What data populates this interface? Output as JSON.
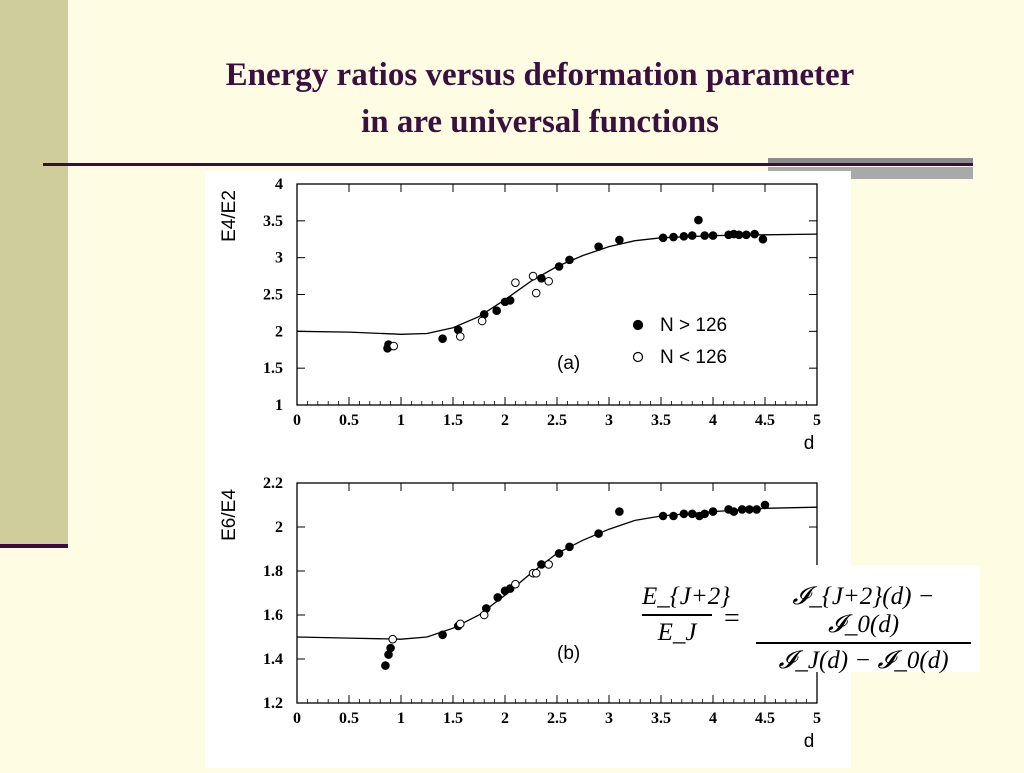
{
  "slide": {
    "title_line1": "Energy ratios versus deformation parameter",
    "title_line2": "in are universal functions"
  },
  "formula": {
    "lhs_num": "E_{J+2}",
    "lhs_den": "E_J",
    "rhs_num": "𝓘_{J+2}(d) − 𝓘_0(d)",
    "rhs_den": "𝓘_J(d) − 𝓘_0(d)",
    "equals": "="
  },
  "chart_data": [
    {
      "type": "scatter",
      "panel_label": "(a)",
      "ylabel": "E4/E2",
      "xlabel": "d",
      "xlim": [
        0,
        5
      ],
      "ylim": [
        1,
        4
      ],
      "xticks": [
        "0",
        "0.5",
        "1",
        "1.5",
        "2",
        "2.5",
        "3",
        "3.5",
        "4",
        "4.5",
        "5"
      ],
      "yticks": [
        "1",
        "1.5",
        "2",
        "2.5",
        "3",
        "3.5",
        "4"
      ],
      "legend": [
        "N > 126",
        "N < 126"
      ],
      "legend_position": "right",
      "series": [
        {
          "name": "N > 126",
          "marker": "filled",
          "points": [
            [
              0.87,
              1.77
            ],
            [
              0.88,
              1.82
            ],
            [
              0.9,
              1.8
            ],
            [
              1.4,
              1.9
            ],
            [
              1.55,
              2.02
            ],
            [
              1.8,
              2.23
            ],
            [
              1.92,
              2.28
            ],
            [
              2.0,
              2.4
            ],
            [
              2.05,
              2.42
            ],
            [
              2.35,
              2.72
            ],
            [
              2.52,
              2.88
            ],
            [
              2.62,
              2.97
            ],
            [
              2.9,
              3.15
            ],
            [
              3.1,
              3.24
            ],
            [
              3.52,
              3.27
            ],
            [
              3.62,
              3.28
            ],
            [
              3.72,
              3.29
            ],
            [
              3.8,
              3.3
            ],
            [
              3.86,
              3.51
            ],
            [
              3.92,
              3.3
            ],
            [
              4.0,
              3.3
            ],
            [
              4.15,
              3.31
            ],
            [
              4.2,
              3.32
            ],
            [
              4.25,
              3.31
            ],
            [
              4.32,
              3.31
            ],
            [
              4.4,
              3.32
            ],
            [
              4.48,
              3.25
            ]
          ]
        },
        {
          "name": "N < 126",
          "marker": "open",
          "points": [
            [
              0.93,
              1.8
            ],
            [
              1.57,
              1.93
            ],
            [
              1.78,
              2.14
            ],
            [
              2.1,
              2.66
            ],
            [
              2.27,
              2.75
            ],
            [
              2.3,
              2.52
            ],
            [
              2.42,
              2.68
            ]
          ]
        },
        {
          "name": "",
          "marker": "line",
          "points": [
            [
              0,
              2.0
            ],
            [
              0.5,
              1.99
            ],
            [
              1,
              1.96
            ],
            [
              1.25,
              1.97
            ],
            [
              1.5,
              2.05
            ],
            [
              1.75,
              2.2
            ],
            [
              2,
              2.43
            ],
            [
              2.25,
              2.68
            ],
            [
              2.5,
              2.88
            ],
            [
              2.75,
              3.03
            ],
            [
              3,
              3.15
            ],
            [
              3.25,
              3.23
            ],
            [
              3.5,
              3.27
            ],
            [
              4,
              3.3
            ],
            [
              4.5,
              3.31
            ],
            [
              5,
              3.32
            ]
          ]
        }
      ]
    },
    {
      "type": "scatter",
      "panel_label": "(b)",
      "ylabel": "E6/E4",
      "xlabel": "d",
      "xlim": [
        0,
        5
      ],
      "ylim": [
        1.2,
        2.2
      ],
      "xticks": [
        "0",
        "0.5",
        "1",
        "1.5",
        "2",
        "2.5",
        "3",
        "3.5",
        "4",
        "4.5",
        "5"
      ],
      "yticks": [
        "1.2",
        "1.4",
        "1.6",
        "1.8",
        "2",
        "2.2"
      ],
      "series": [
        {
          "name": "N > 126",
          "marker": "filled",
          "points": [
            [
              0.85,
              1.37
            ],
            [
              0.88,
              1.42
            ],
            [
              0.9,
              1.45
            ],
            [
              1.4,
              1.51
            ],
            [
              1.55,
              1.55
            ],
            [
              1.82,
              1.63
            ],
            [
              1.93,
              1.68
            ],
            [
              2.0,
              1.71
            ],
            [
              2.05,
              1.72
            ],
            [
              2.35,
              1.83
            ],
            [
              2.52,
              1.88
            ],
            [
              2.62,
              1.91
            ],
            [
              2.9,
              1.97
            ],
            [
              3.1,
              2.07
            ],
            [
              3.52,
              2.05
            ],
            [
              3.62,
              2.05
            ],
            [
              3.72,
              2.06
            ],
            [
              3.8,
              2.06
            ],
            [
              3.87,
              2.05
            ],
            [
              3.92,
              2.06
            ],
            [
              4.0,
              2.07
            ],
            [
              4.15,
              2.08
            ],
            [
              4.2,
              2.07
            ],
            [
              4.28,
              2.08
            ],
            [
              4.35,
              2.08
            ],
            [
              4.42,
              2.08
            ],
            [
              4.5,
              2.1
            ]
          ]
        },
        {
          "name": "N < 126",
          "marker": "open",
          "points": [
            [
              0.92,
              1.49
            ],
            [
              1.57,
              1.56
            ],
            [
              1.8,
              1.6
            ],
            [
              2.1,
              1.74
            ],
            [
              2.27,
              1.79
            ],
            [
              2.3,
              1.79
            ],
            [
              2.42,
              1.83
            ]
          ]
        },
        {
          "name": "",
          "marker": "line",
          "points": [
            [
              0,
              1.5
            ],
            [
              0.5,
              1.495
            ],
            [
              1,
              1.49
            ],
            [
              1.25,
              1.5
            ],
            [
              1.5,
              1.54
            ],
            [
              1.75,
              1.6
            ],
            [
              2,
              1.69
            ],
            [
              2.25,
              1.79
            ],
            [
              2.5,
              1.88
            ],
            [
              2.75,
              1.94
            ],
            [
              3,
              1.99
            ],
            [
              3.25,
              2.03
            ],
            [
              3.5,
              2.05
            ],
            [
              4,
              2.07
            ],
            [
              4.5,
              2.085
            ],
            [
              5,
              2.09
            ]
          ]
        }
      ]
    }
  ]
}
